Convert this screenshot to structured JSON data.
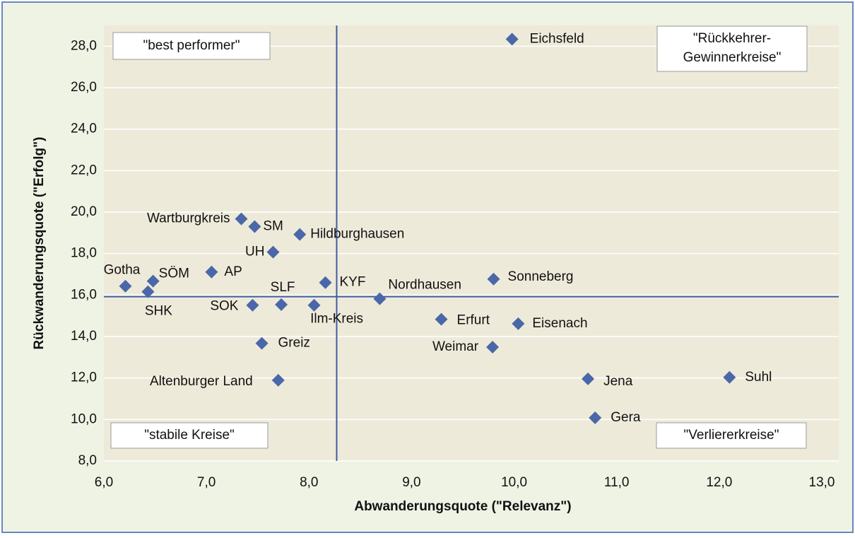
{
  "chart_data": {
    "type": "scatter",
    "xlabel": "Abwanderungsquote (\"Relevanz\")",
    "ylabel": "Rückwanderungsquote (\"Erfolg\")",
    "color": "#4a68a8",
    "xlim": [
      6,
      13
    ],
    "ylim": [
      8,
      29
    ],
    "xticks": [
      {
        "value": 6,
        "label": "6,0"
      },
      {
        "value": 7,
        "label": "7,0"
      },
      {
        "value": 8,
        "label": "8,0"
      },
      {
        "value": 9,
        "label": "9,0"
      },
      {
        "value": 10,
        "label": "10,0"
      },
      {
        "value": 11,
        "label": "11,0"
      },
      {
        "value": 12,
        "label": "12,0"
      },
      {
        "value": 13,
        "label": "13,0"
      }
    ],
    "yticks": [
      {
        "value": 8,
        "label": "8,0"
      },
      {
        "value": 10,
        "label": "10,0"
      },
      {
        "value": 12,
        "label": "12,0"
      },
      {
        "value": 14,
        "label": "14,0"
      },
      {
        "value": 16,
        "label": "16,0"
      },
      {
        "value": 18,
        "label": "18,0"
      },
      {
        "value": 20,
        "label": "20,0"
      },
      {
        "value": 22,
        "label": "22,0"
      },
      {
        "value": 24,
        "label": "24,0"
      },
      {
        "value": 26,
        "label": "26,0"
      },
      {
        "value": 28,
        "label": "28,0"
      }
    ],
    "grid": true,
    "reference_lines": {
      "x": 8.27,
      "y": 15.92
    },
    "annotations": [
      "\"best performer\"",
      "\"Rückkehrer-\nGewinnerkreise\"",
      "\"stabile Kreise\"",
      "\"Verliererkreise\""
    ],
    "labels": [
      "Eichsfeld",
      "Wartburgkreis",
      "SM",
      "Hildburghausen",
      "UH",
      "AP",
      "Gotha",
      "SÖM",
      "SHK",
      "KYF",
      "Nordhausen",
      "Sonneberg",
      "SOK",
      "SLF",
      "Ilm-Kreis",
      "Erfurt",
      "Eisenach",
      "Weimar",
      "Greiz",
      "Altenburger Land",
      "Jena",
      "Suhl",
      "Gera"
    ],
    "x": [
      9.98,
      7.34,
      7.47,
      7.91,
      7.65,
      7.05,
      6.21,
      6.48,
      6.43,
      8.16,
      8.69,
      9.8,
      7.45,
      7.73,
      8.05,
      9.29,
      10.04,
      9.79,
      7.54,
      7.7,
      10.72,
      12.1,
      10.79
    ],
    "values": [
      28.34,
      19.67,
      19.3,
      18.92,
      18.07,
      17.11,
      16.43,
      16.67,
      16.16,
      16.6,
      15.82,
      16.77,
      15.51,
      15.54,
      15.51,
      14.83,
      14.62,
      13.49,
      13.67,
      11.89,
      11.96,
      12.03,
      10.08
    ]
  }
}
